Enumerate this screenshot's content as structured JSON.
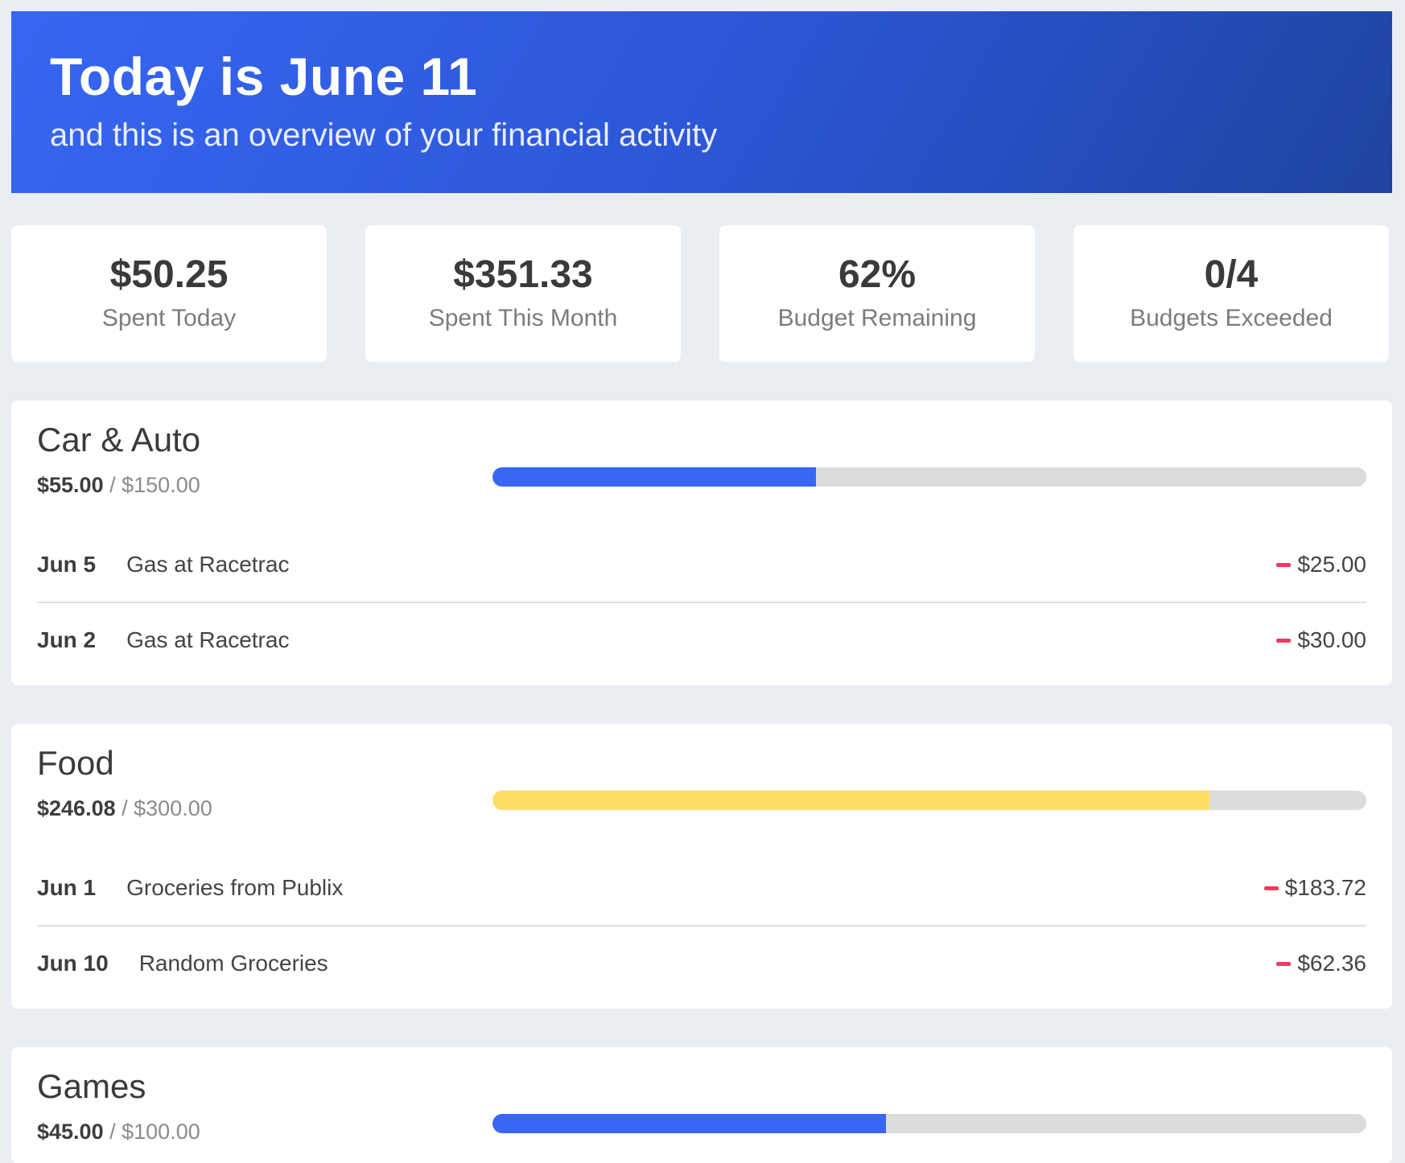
{
  "header": {
    "title": "Today is June 11",
    "subtitle": "and this is an overview of your financial activity"
  },
  "stats": [
    {
      "value": "$50.25",
      "label": "Spent Today"
    },
    {
      "value": "$351.33",
      "label": "Spent This Month"
    },
    {
      "value": "62%",
      "label": "Budget Remaining"
    },
    {
      "value": "0/4",
      "label": "Budgets Exceeded"
    }
  ],
  "colors": {
    "progress_blue": "#3966f5",
    "progress_yellow": "#fddf67",
    "minus_red": "#f03b5d"
  },
  "budgets": [
    {
      "name": "Car & Auto",
      "spent": "$55.00",
      "limit": "$150.00",
      "progress": 0.37,
      "color": "#3966f5",
      "transactions": [
        {
          "date": "Jun 5",
          "description": "Gas at Racetrac",
          "amount": "$25.00",
          "icon": "minus-icon"
        },
        {
          "date": "Jun 2",
          "description": "Gas at Racetrac",
          "amount": "$30.00",
          "icon": "minus-icon"
        }
      ]
    },
    {
      "name": "Food",
      "spent": "$246.08",
      "limit": "$300.00",
      "progress": 0.82,
      "color": "#fddf67",
      "transactions": [
        {
          "date": "Jun 1",
          "description": "Groceries from Publix",
          "amount": "$183.72",
          "icon": "minus-icon"
        },
        {
          "date": "Jun 10",
          "description": "Random Groceries",
          "amount": "$62.36",
          "icon": "minus-icon"
        }
      ]
    },
    {
      "name": "Games",
      "spent": "$45.00",
      "limit": "$100.00",
      "progress": 0.45,
      "color": "#3966f5",
      "transactions": []
    }
  ]
}
